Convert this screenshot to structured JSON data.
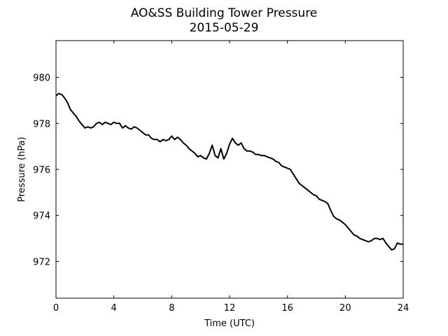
{
  "chart_data": {
    "type": "line",
    "title": "AO&SS Building Tower Pressure",
    "subtitle": "2015-05-29",
    "xlabel": "Time (UTC)",
    "ylabel": "Pressure (hPa)",
    "xlim": [
      0,
      24
    ],
    "ylim": [
      970.4,
      981.6
    ],
    "xticks": [
      0,
      4,
      8,
      12,
      16,
      20,
      24
    ],
    "yticks": [
      972,
      974,
      976,
      978,
      980
    ],
    "grid": false,
    "series": [
      {
        "color": "#000000",
        "x": [
          0,
          0.2,
          0.4,
          0.6,
          0.8,
          1.0,
          1.2,
          1.4,
          1.6,
          1.8,
          2.0,
          2.2,
          2.4,
          2.6,
          2.8,
          3.0,
          3.2,
          3.4,
          3.6,
          3.8,
          4.0,
          4.2,
          4.4,
          4.6,
          4.8,
          5.0,
          5.2,
          5.4,
          5.6,
          5.8,
          6.0,
          6.2,
          6.4,
          6.6,
          6.8,
          7.0,
          7.2,
          7.4,
          7.6,
          7.8,
          8.0,
          8.2,
          8.4,
          8.6,
          8.8,
          9.0,
          9.2,
          9.4,
          9.6,
          9.8,
          10.0,
          10.2,
          10.4,
          10.6,
          10.8,
          11.0,
          11.2,
          11.4,
          11.6,
          11.8,
          12.0,
          12.2,
          12.4,
          12.6,
          12.8,
          13.0,
          13.2,
          13.4,
          13.6,
          13.8,
          14.0,
          14.2,
          14.4,
          14.6,
          14.8,
          15.0,
          15.2,
          15.4,
          15.6,
          15.8,
          16.0,
          16.2,
          16.4,
          16.6,
          16.8,
          17.0,
          17.2,
          17.4,
          17.6,
          17.8,
          18.0,
          18.2,
          18.4,
          18.6,
          18.8,
          19.0,
          19.2,
          19.4,
          19.6,
          19.8,
          20.0,
          20.2,
          20.4,
          20.6,
          20.8,
          21.0,
          21.2,
          21.4,
          21.6,
          21.8,
          22.0,
          22.2,
          22.4,
          22.6,
          22.8,
          23.0,
          23.2,
          23.4,
          23.6,
          23.8,
          24.0
        ],
        "y": [
          979.2,
          979.3,
          979.25,
          979.1,
          978.9,
          978.6,
          978.45,
          978.3,
          978.1,
          977.95,
          977.8,
          977.85,
          977.8,
          977.85,
          978.0,
          978.05,
          977.95,
          978.05,
          978.0,
          977.95,
          978.05,
          978.0,
          978.0,
          977.8,
          977.9,
          977.8,
          977.75,
          977.85,
          977.8,
          977.7,
          977.6,
          977.5,
          977.5,
          977.35,
          977.3,
          977.3,
          977.2,
          977.3,
          977.25,
          977.3,
          977.45,
          977.3,
          977.4,
          977.3,
          977.15,
          977.05,
          976.9,
          976.8,
          976.7,
          976.55,
          976.6,
          976.5,
          976.45,
          976.7,
          977.05,
          976.6,
          976.5,
          976.9,
          976.45,
          976.7,
          977.1,
          977.35,
          977.15,
          977.05,
          977.15,
          976.9,
          976.8,
          976.8,
          976.75,
          976.65,
          976.65,
          976.6,
          976.6,
          976.55,
          976.5,
          976.45,
          976.35,
          976.3,
          976.15,
          976.1,
          976.05,
          976.0,
          975.8,
          975.6,
          975.4,
          975.3,
          975.2,
          975.1,
          975.0,
          974.9,
          974.85,
          974.7,
          974.65,
          974.6,
          974.5,
          974.2,
          973.95,
          973.85,
          973.8,
          973.7,
          973.6,
          973.45,
          973.3,
          973.15,
          973.1,
          973.0,
          972.95,
          972.9,
          972.85,
          972.9,
          973.0,
          973.0,
          972.95,
          973.0,
          972.8,
          972.65,
          972.5,
          972.55,
          972.8,
          972.75,
          972.75
        ]
      }
    ]
  }
}
